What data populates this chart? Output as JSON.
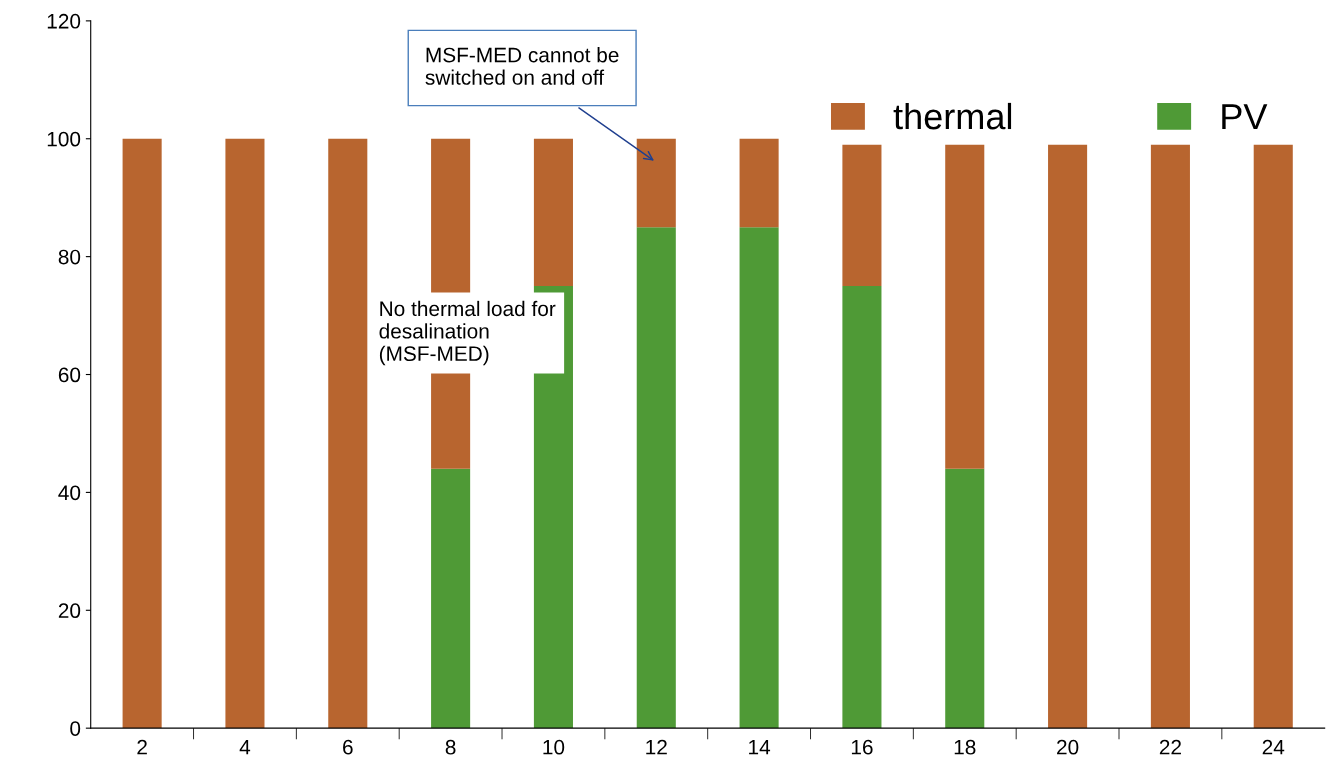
{
  "chart_data": {
    "type": "bar",
    "stacked": true,
    "categories": [
      "2",
      "4",
      "6",
      "8",
      "10",
      "12",
      "14",
      "16",
      "18",
      "20",
      "22",
      "24"
    ],
    "series": [
      {
        "name": "PV",
        "color": "#4f9a36",
        "values": [
          0,
          0,
          0,
          44,
          75,
          85,
          85,
          75,
          44,
          0,
          0,
          0
        ]
      },
      {
        "name": "thermal",
        "color": "#b8652f",
        "values": [
          100,
          100,
          100,
          56,
          25,
          15,
          15,
          24,
          55,
          99,
          99,
          99
        ]
      }
    ],
    "ylim": [
      0,
      120
    ],
    "yticks": [
      0,
      20,
      40,
      60,
      80,
      100,
      120
    ],
    "grid": false,
    "legend": "top right",
    "annotations": [
      "MSF-MED cannot be\nswitched on and off",
      "No thermal load for\ndesalination\n(MSF-MED)"
    ]
  }
}
